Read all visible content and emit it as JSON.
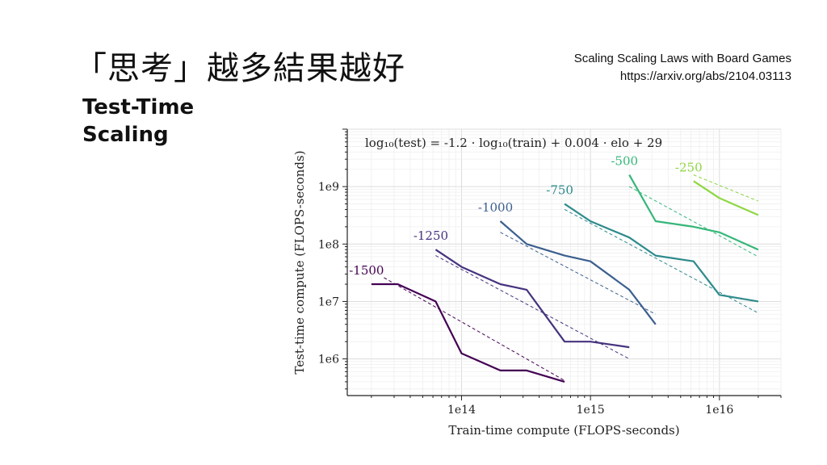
{
  "slide": {
    "title": "「思考」越多結果越好",
    "subtitle_line1": "Test-Time",
    "subtitle_line2": "Scaling",
    "ref_title": "Scaling Scaling Laws with Board Games",
    "ref_url": "https://arxiv.org/abs/2104.03113"
  },
  "chart_data": {
    "type": "line",
    "title": "",
    "annotation": "log₁₀(test) = -1.2 · log₁₀(train) + 0.004 · elo + 29",
    "xlabel": "Train-time compute (FLOPS-seconds)",
    "ylabel": "Test-time compute (FLOPS-seconds)",
    "xscale": "log",
    "yscale": "log",
    "xlim": [
      13000000000000.0,
      3e+16
    ],
    "ylim": [
      230000.0,
      10000000000.0
    ],
    "xticks": [
      {
        "v": 100000000000000.0,
        "label": "1e14"
      },
      {
        "v": 1000000000000000.0,
        "label": "1e15"
      },
      {
        "v": 1e+16,
        "label": "1e16"
      }
    ],
    "yticks": [
      {
        "v": 1000000.0,
        "label": "1e6"
      },
      {
        "v": 10000000.0,
        "label": "1e7"
      },
      {
        "v": 100000000.0,
        "label": "1e8"
      },
      {
        "v": 1000000000.0,
        "label": "1e9"
      }
    ],
    "grid": true,
    "series": [
      {
        "name": "-1500",
        "color": "#440154",
        "x": [
          20000000000000.0,
          32000000000000.0,
          63000000000000.0,
          100000000000000.0,
          200000000000000.0,
          320000000000000.0,
          630000000000000.0
        ],
        "y": [
          20000000.0,
          20000000.0,
          10000000.0,
          1250000.0,
          630000.0,
          630000.0,
          400000.0
        ],
        "fit_x": [
          25000000000000.0,
          630000000000000.0
        ],
        "fit_y": [
          26000000.0,
          420000.0
        ]
      },
      {
        "name": "-1250",
        "color": "#46337e",
        "x": [
          63000000000000.0,
          100000000000000.0,
          200000000000000.0,
          320000000000000.0,
          630000000000000.0,
          1000000000000000.0,
          2000000000000000.0
        ],
        "y": [
          80000000.0,
          40000000.0,
          20000000.0,
          16000000.0,
          2000000.0,
          2000000.0,
          1600000.0
        ],
        "fit_x": [
          63000000000000.0,
          2000000000000000.0
        ],
        "fit_y": [
          63000000.0,
          1000000.0
        ]
      },
      {
        "name": "-1000",
        "color": "#3b5f8e",
        "x": [
          200000000000000.0,
          320000000000000.0,
          630000000000000.0,
          1000000000000000.0,
          2000000000000000.0,
          3200000000000000.0
        ],
        "y": [
          250000000.0,
          100000000.0,
          63000000.0,
          50000000.0,
          16000000.0,
          4000000.0
        ],
        "fit_x": [
          200000000000000.0,
          3200000000000000.0
        ],
        "fit_y": [
          160000000.0,
          6000000.0
        ]
      },
      {
        "name": "-750",
        "color": "#2e8a8b",
        "x": [
          630000000000000.0,
          1000000000000000.0,
          2000000000000000.0,
          3200000000000000.0,
          6300000000000000.0,
          1e+16,
          2e+16
        ],
        "y": [
          500000000.0,
          250000000.0,
          130000000.0,
          63000000.0,
          50000000.0,
          13000000.0,
          10000000.0
        ],
        "fit_x": [
          630000000000000.0,
          2e+16
        ],
        "fit_y": [
          400000000.0,
          6300000.0
        ]
      },
      {
        "name": "-500",
        "color": "#35b779",
        "x": [
          2000000000000000.0,
          3200000000000000.0,
          6300000000000000.0,
          1e+16,
          2e+16
        ],
        "y": [
          1600000000.0,
          250000000.0,
          200000000.0,
          160000000.0,
          80000000.0
        ],
        "fit_x": [
          2000000000000000.0,
          2e+16
        ],
        "fit_y": [
          1000000000.0,
          60000000.0
        ]
      },
      {
        "name": "-250",
        "color": "#8fd744",
        "x": [
          6300000000000000.0,
          1e+16,
          2e+16
        ],
        "y": [
          1250000000.0,
          630000000.0,
          320000000.0
        ],
        "fit_x": [
          6300000000000000.0,
          2e+16
        ],
        "fit_y": [
          1600000000.0,
          560000000.0
        ]
      }
    ]
  }
}
